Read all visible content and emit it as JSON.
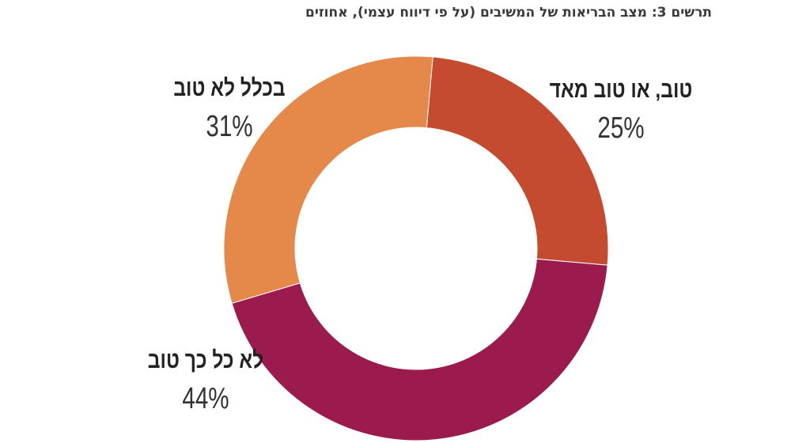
{
  "title": "תרשים 3: מצב הבריאות של המשיבים (על פי דיווח עצמי), אחוזים",
  "chart_data": {
    "type": "pie",
    "donut": true,
    "title": "תרשים 3: מצב הבריאות של המשיבים (על פי דיווח עצמי), אחוזים",
    "categories": [
      "טוב, או טוב מאד",
      "לא כל כך טוב",
      "בכלל לא טוב"
    ],
    "values": [
      25,
      44,
      31
    ],
    "value_labels": [
      "25%",
      "44%",
      "31%"
    ],
    "colors": [
      "#C44A30",
      "#9C1B4E",
      "#E5894A"
    ],
    "start": "12 o'clock",
    "direction": "clockwise",
    "legend": "none"
  }
}
